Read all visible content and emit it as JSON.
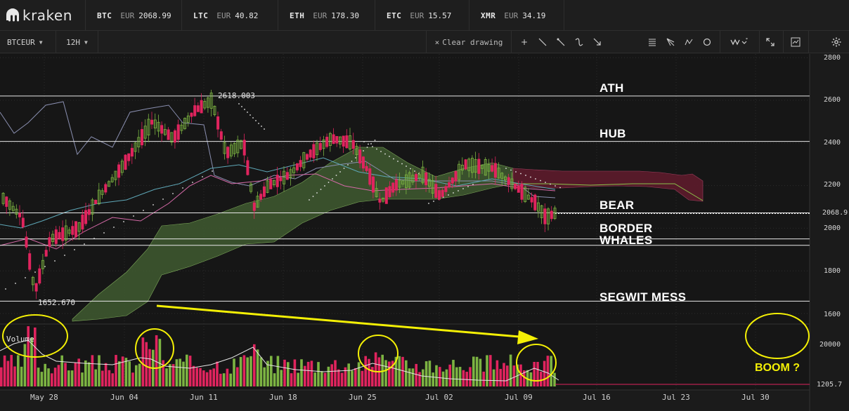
{
  "brand": "kraken",
  "ticker": [
    {
      "symbol": "BTC",
      "currency": "EUR",
      "price": "2068.99"
    },
    {
      "symbol": "LTC",
      "currency": "EUR",
      "price": "40.82"
    },
    {
      "symbol": "ETH",
      "currency": "EUR",
      "price": "178.30"
    },
    {
      "symbol": "ETC",
      "currency": "EUR",
      "price": "15.57"
    },
    {
      "symbol": "XMR",
      "currency": "EUR",
      "price": "34.19"
    }
  ],
  "toolbar": {
    "pair": "BTCEUR",
    "interval": "12H",
    "clear_drawing": "Clear drawing",
    "tools": [
      "crosshair-icon",
      "line-icon",
      "ray-icon",
      "curve-icon",
      "arrow-icon",
      "fib-icon",
      "pitchfork-icon",
      "path-icon",
      "circle-icon",
      "indicators-icon",
      "fullscreen-icon",
      "chart-type-icon",
      "settings-icon"
    ]
  },
  "chart": {
    "price_axis": [
      "2800",
      "2600",
      "2400",
      "2200",
      "2068.9",
      "2000",
      "1800",
      "1600"
    ],
    "volume_axis": [
      "20000",
      "1205.7"
    ],
    "x_axis": [
      "May 28",
      "Jun 04",
      "Jun 11",
      "Jun 18",
      "Jun 25",
      "Jul 02",
      "Jul 09",
      "Jul 16",
      "Jul 23",
      "Jul 30"
    ],
    "high_label": "2618.003",
    "low_label": "1652.670",
    "volume_label": "Volume",
    "annotations": [
      "ATH",
      "HUB",
      "BEAR",
      "BORDER",
      "WHALES",
      "SEGWIT MESS"
    ],
    "boom_label": "BOOM ?",
    "colors": {
      "up": "#7cb342",
      "down": "#e0245e",
      "cloud_bull": "#3f5a30",
      "cloud_bear": "#5a1a2a",
      "annotation": "#f4f005"
    }
  },
  "chart_data": {
    "type": "candlestick",
    "price_axis_ticks": [
      2800,
      2600,
      2400,
      2200,
      2000,
      1800,
      1600
    ],
    "ylim": [
      1550,
      2830
    ],
    "last_price": 2068.9,
    "horizontal_levels": [
      {
        "name": "ATH",
        "value": 2620
      },
      {
        "name": "HUB",
        "value": 2407
      },
      {
        "name": "BEAR",
        "value": 2072
      },
      {
        "name": "BORDER",
        "value": 1950
      },
      {
        "name": "WHALES",
        "value": 1920
      },
      {
        "name": "SEGWIT MESS",
        "value": 1658
      }
    ],
    "volume_ticks": [
      20000,
      1205.7
    ]
  }
}
